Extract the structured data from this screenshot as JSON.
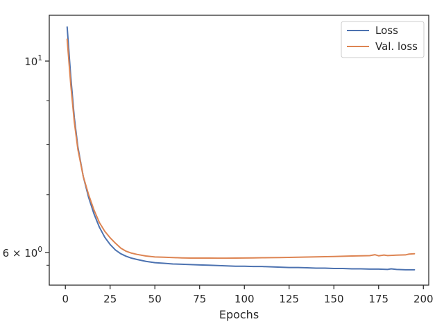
{
  "chart_data": {
    "type": "line",
    "title": "",
    "xlabel": "Epochs",
    "ylabel": "",
    "xlim": [
      -9,
      203
    ],
    "ylim": [
      5.5,
      11.3
    ],
    "y_scale": "log",
    "grid": false,
    "legend_position": "top-right",
    "x_ticks": [
      0,
      25,
      50,
      75,
      100,
      125,
      150,
      175,
      200
    ],
    "y_major_ticks": [
      {
        "value": 10,
        "base": "10",
        "exp": "1"
      },
      {
        "value": 6,
        "mantissa": "6",
        "base": "10",
        "exp": "0"
      }
    ],
    "y_minor_ticks": [
      5.8,
      7,
      8,
      9
    ],
    "series": [
      {
        "name": "Loss",
        "color": "#4c72b0",
        "x": [
          1,
          3,
          5,
          7,
          10,
          13,
          16,
          19,
          22,
          25,
          28,
          31,
          34,
          37,
          40,
          45,
          50,
          55,
          60,
          65,
          70,
          75,
          80,
          85,
          90,
          95,
          100,
          105,
          110,
          115,
          120,
          125,
          130,
          135,
          140,
          145,
          150,
          155,
          160,
          165,
          170,
          175,
          180,
          182,
          185,
          190,
          195
        ],
        "y": [
          10.95,
          9.6,
          8.6,
          7.95,
          7.35,
          6.95,
          6.65,
          6.42,
          6.25,
          6.13,
          6.04,
          5.98,
          5.94,
          5.91,
          5.89,
          5.86,
          5.84,
          5.83,
          5.82,
          5.815,
          5.81,
          5.805,
          5.8,
          5.795,
          5.79,
          5.785,
          5.785,
          5.78,
          5.78,
          5.775,
          5.77,
          5.765,
          5.765,
          5.76,
          5.755,
          5.755,
          5.75,
          5.75,
          5.745,
          5.745,
          5.74,
          5.74,
          5.735,
          5.745,
          5.735,
          5.73,
          5.73
        ]
      },
      {
        "name": "Val. loss",
        "color": "#dd8452",
        "x": [
          1,
          3,
          5,
          7,
          10,
          13,
          16,
          19,
          22,
          25,
          28,
          31,
          34,
          37,
          40,
          45,
          50,
          55,
          60,
          65,
          70,
          75,
          80,
          85,
          90,
          95,
          100,
          105,
          110,
          115,
          120,
          125,
          130,
          135,
          140,
          145,
          150,
          155,
          160,
          165,
          170,
          173,
          175,
          178,
          180,
          185,
          190,
          192,
          195
        ],
        "y": [
          10.6,
          9.4,
          8.5,
          7.9,
          7.35,
          7.0,
          6.72,
          6.5,
          6.35,
          6.24,
          6.15,
          6.07,
          6.02,
          5.99,
          5.97,
          5.945,
          5.93,
          5.925,
          5.92,
          5.915,
          5.912,
          5.912,
          5.912,
          5.911,
          5.91,
          5.912,
          5.913,
          5.915,
          5.917,
          5.918,
          5.92,
          5.922,
          5.925,
          5.928,
          5.931,
          5.934,
          5.937,
          5.94,
          5.944,
          5.947,
          5.95,
          5.965,
          5.948,
          5.96,
          5.952,
          5.958,
          5.962,
          5.975,
          5.98
        ]
      }
    ]
  }
}
